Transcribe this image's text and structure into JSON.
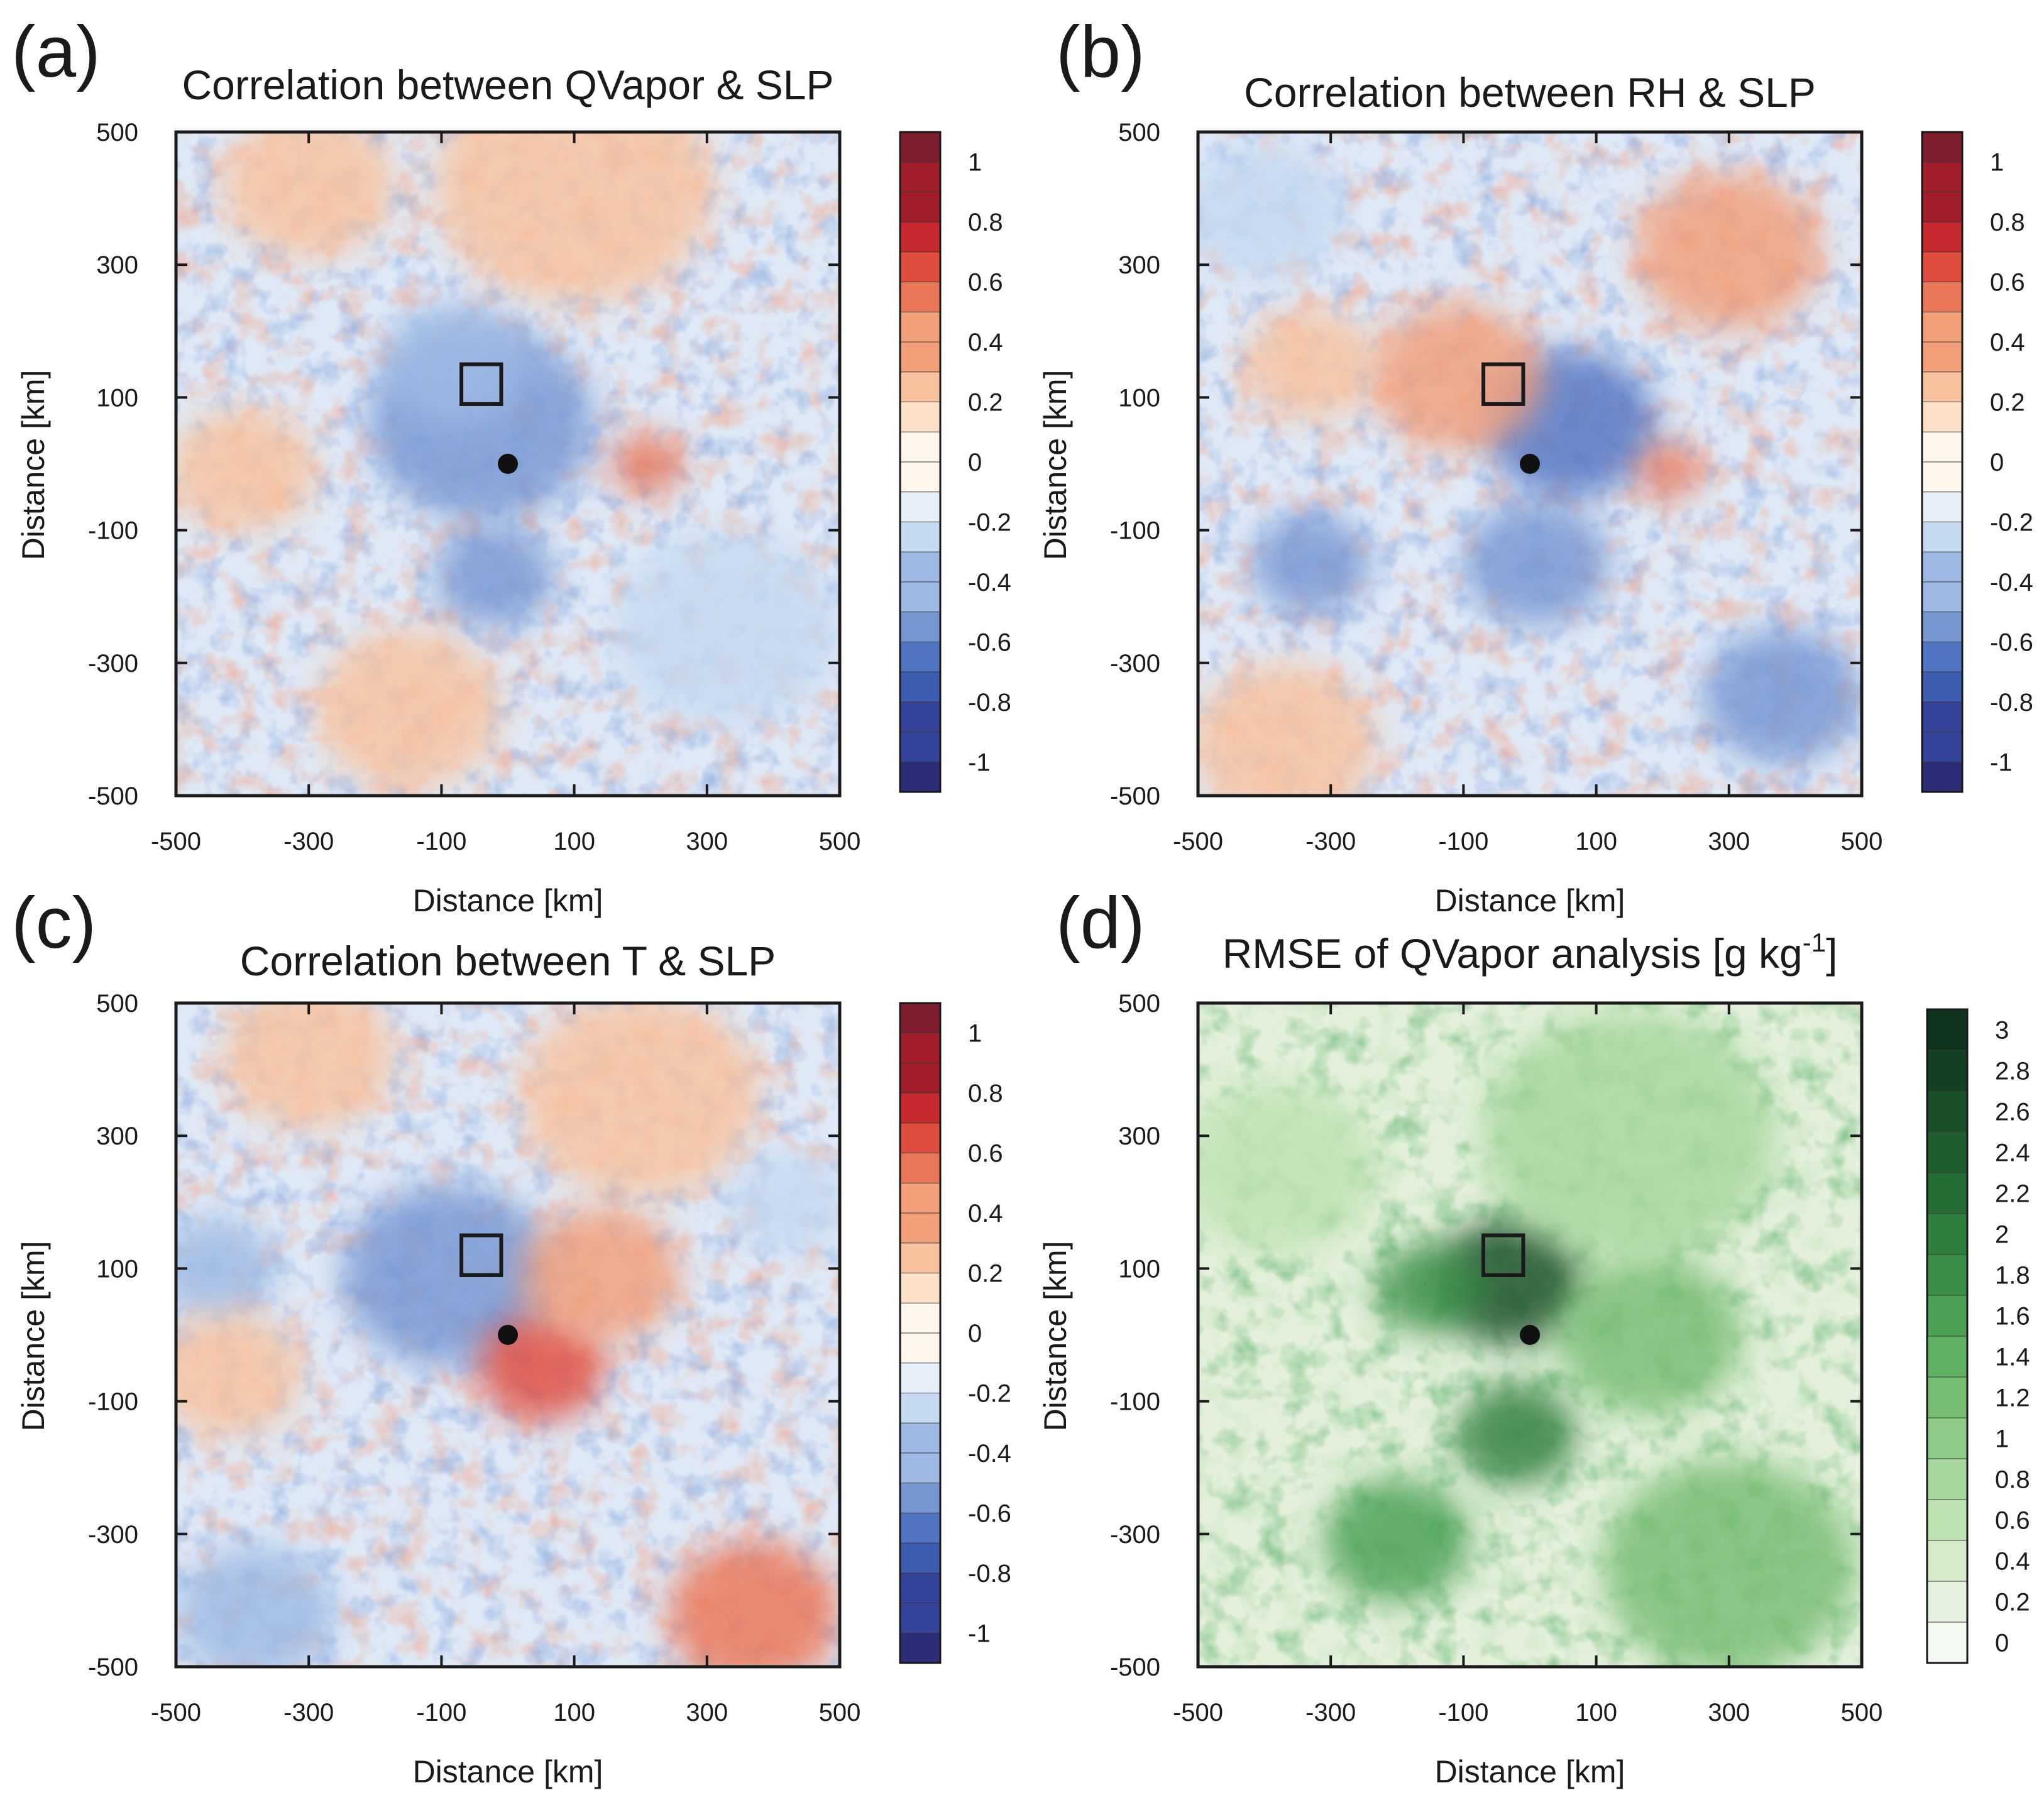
{
  "chart_data": [
    {
      "type": "heatmap",
      "panel": "(a)",
      "title": "Correlation between QVapor & SLP",
      "xlabel": "Distance [km]",
      "ylabel": "Distance [km]",
      "xlim": [
        -500,
        500
      ],
      "ylim": [
        -500,
        500
      ],
      "xticks": [
        -500,
        -300,
        -100,
        100,
        300,
        500
      ],
      "yticks": [
        500,
        300,
        100,
        -100,
        -300,
        -500
      ],
      "colormap": "diverging-blue-red",
      "colorbar_ticks": [
        "1",
        "0.8",
        "0.6",
        "0.4",
        "0.2",
        "0",
        "-0.2",
        "-0.4",
        "-0.6",
        "-0.8",
        "-1"
      ],
      "colorbar_range": [
        -1.1,
        1.1
      ],
      "marker_square": {
        "x": -40,
        "y": 120,
        "size_km": 60
      },
      "marker_point": {
        "x": 0,
        "y": 0
      },
      "features": [
        {
          "x": -40,
          "y": 60,
          "value": -0.55,
          "radius": 170
        },
        {
          "x": -80,
          "y": 150,
          "value": -0.45,
          "radius": 110
        },
        {
          "x": -20,
          "y": -170,
          "value": -0.5,
          "radius": 90
        },
        {
          "x": 210,
          "y": 0,
          "value": 0.55,
          "radius": 55
        },
        {
          "x": 100,
          "y": 420,
          "value": 0.25,
          "radius": 210
        },
        {
          "x": -300,
          "y": 420,
          "value": 0.2,
          "radius": 130
        },
        {
          "x": -150,
          "y": -370,
          "value": 0.2,
          "radius": 140
        },
        {
          "x": -400,
          "y": -10,
          "value": 0.2,
          "radius": 110
        },
        {
          "x": 330,
          "y": -250,
          "value": -0.25,
          "radius": 170
        }
      ]
    },
    {
      "type": "heatmap",
      "panel": "(b)",
      "title": "Correlation between RH & SLP",
      "xlabel": "Distance [km]",
      "ylabel": "Distance [km]",
      "xlim": [
        -500,
        500
      ],
      "ylim": [
        -500,
        500
      ],
      "xticks": [
        -500,
        -300,
        -100,
        100,
        300,
        500
      ],
      "yticks": [
        500,
        300,
        100,
        -100,
        -300,
        -500
      ],
      "colormap": "diverging-blue-red",
      "colorbar_ticks": [
        "1",
        "0.8",
        "0.6",
        "0.4",
        "0.2",
        "0",
        "-0.2",
        "-0.4",
        "-0.6",
        "-0.8",
        "-1"
      ],
      "colorbar_range": [
        -1.1,
        1.1
      ],
      "marker_square": {
        "x": -40,
        "y": 120,
        "size_km": 60
      },
      "marker_point": {
        "x": 0,
        "y": 0
      },
      "features": [
        {
          "x": 60,
          "y": 60,
          "value": -0.65,
          "radius": 130
        },
        {
          "x": 10,
          "y": -150,
          "value": -0.5,
          "radius": 110
        },
        {
          "x": -110,
          "y": 130,
          "value": 0.35,
          "radius": 130
        },
        {
          "x": 210,
          "y": -10,
          "value": 0.5,
          "radius": 50
        },
        {
          "x": -330,
          "y": -150,
          "value": -0.5,
          "radius": 90
        },
        {
          "x": 380,
          "y": -350,
          "value": -0.55,
          "radius": 120
        },
        {
          "x": 300,
          "y": 320,
          "value": 0.35,
          "radius": 140
        },
        {
          "x": -370,
          "y": -420,
          "value": 0.25,
          "radius": 140
        },
        {
          "x": -330,
          "y": 150,
          "value": 0.25,
          "radius": 100
        },
        {
          "x": -400,
          "y": 380,
          "value": -0.3,
          "radius": 120
        }
      ]
    },
    {
      "type": "heatmap",
      "panel": "(c)",
      "title": "Correlation between T & SLP",
      "xlabel": "Distance [km]",
      "ylabel": "Distance [km]",
      "xlim": [
        -500,
        500
      ],
      "ylim": [
        -500,
        500
      ],
      "xticks": [
        -500,
        -300,
        -100,
        100,
        300,
        500
      ],
      "yticks": [
        500,
        300,
        100,
        -100,
        -300,
        -500
      ],
      "colormap": "diverging-blue-red",
      "colorbar_ticks": [
        "1",
        "0.8",
        "0.6",
        "0.4",
        "0.2",
        "0",
        "-0.2",
        "-0.4",
        "-0.6",
        "-0.8",
        "-1"
      ],
      "colorbar_range": [
        -1.1,
        1.1
      ],
      "marker_square": {
        "x": -40,
        "y": 120,
        "size_km": 60
      },
      "marker_point": {
        "x": 0,
        "y": 0
      },
      "features": [
        {
          "x": -90,
          "y": 90,
          "value": -0.55,
          "radius": 160
        },
        {
          "x": 50,
          "y": -50,
          "value": 0.6,
          "radius": 95
        },
        {
          "x": 140,
          "y": 90,
          "value": 0.45,
          "radius": 120
        },
        {
          "x": 370,
          "y": -420,
          "value": 0.55,
          "radius": 130
        },
        {
          "x": -440,
          "y": 100,
          "value": -0.45,
          "radius": 90
        },
        {
          "x": 200,
          "y": 360,
          "value": 0.3,
          "radius": 180
        },
        {
          "x": -300,
          "y": 420,
          "value": 0.25,
          "radius": 130
        },
        {
          "x": -420,
          "y": -60,
          "value": 0.3,
          "radius": 110
        },
        {
          "x": -380,
          "y": -420,
          "value": -0.35,
          "radius": 120
        },
        {
          "x": 420,
          "y": 200,
          "value": -0.25,
          "radius": 90
        }
      ]
    },
    {
      "type": "heatmap",
      "panel": "(d)",
      "title": "RMSE of QVapor analysis [g kg",
      "title_superscript": "-1",
      "title_suffix": "]",
      "xlabel": "Distance [km]",
      "ylabel": "Distance [km]",
      "xlim": [
        -500,
        500
      ],
      "ylim": [
        -500,
        500
      ],
      "xticks": [
        -500,
        -300,
        -100,
        100,
        300,
        500
      ],
      "yticks": [
        500,
        300,
        100,
        -100,
        -300,
        -500
      ],
      "colormap": "sequential-green",
      "colorbar_ticks": [
        "3",
        "2.8",
        "2.6",
        "2.4",
        "2.2",
        "2",
        "1.8",
        "1.6",
        "1.4",
        "1.2",
        "1",
        "0.8",
        "0.6",
        "0.4",
        "0.2",
        "0"
      ],
      "colorbar_range": [
        -0.1,
        3.1
      ],
      "marker_square": {
        "x": -40,
        "y": 120,
        "size_km": 60
      },
      "marker_point": {
        "x": 0,
        "y": 0
      },
      "features": [
        {
          "x": -30,
          "y": 80,
          "value": 2.6,
          "radius": 110
        },
        {
          "x": -150,
          "y": 70,
          "value": 1.8,
          "radius": 80
        },
        {
          "x": -20,
          "y": -150,
          "value": 2.0,
          "radius": 90
        },
        {
          "x": 180,
          "y": 0,
          "value": 1.1,
          "radius": 140
        },
        {
          "x": -200,
          "y": -310,
          "value": 1.6,
          "radius": 110
        },
        {
          "x": 300,
          "y": -350,
          "value": 1.2,
          "radius": 190
        },
        {
          "x": 150,
          "y": 300,
          "value": 0.8,
          "radius": 220
        },
        {
          "x": -380,
          "y": 250,
          "value": 0.6,
          "radius": 150
        }
      ]
    }
  ]
}
